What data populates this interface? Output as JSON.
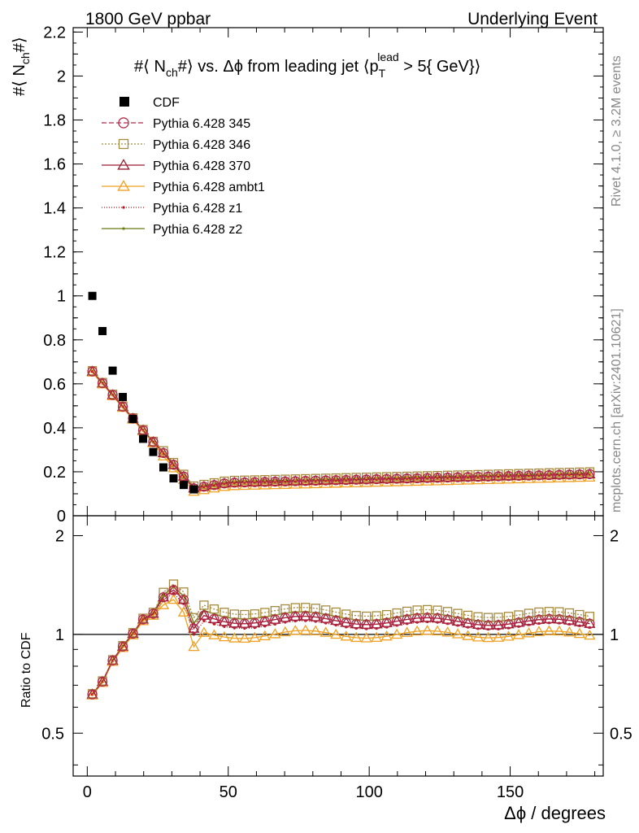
{
  "header": {
    "left": "1800 GeV ppbar",
    "right": "Underlying Event"
  },
  "side_labels": {
    "rivet": "Rivet 4.1.0, ≥ 3.2M events",
    "mcplots": "mcplots.cern.ch [arXiv:2401.10621]"
  },
  "chart_data": {
    "type": "scatter",
    "title_parts": {
      "a": "#⟨ N",
      "a_sub": "ch",
      "b": "#⟩ vs. Δϕ from leading jet  ⟨p",
      "b_sub": "T",
      "b_sup": "lead",
      "c": " > 5{ GeV}⟩"
    },
    "ylabel_parts": {
      "a": "#⟨ N",
      "sub": "ch",
      "b": "#⟩"
    },
    "xlabel": "Δϕ / degrees",
    "ratio_ylabel": "Ratio to CDF",
    "xlim": [
      -5,
      183
    ],
    "ylim": [
      0,
      2.22
    ],
    "ratio_ylim": [
      0.37,
      2.3
    ],
    "x_ticks": [
      "0",
      "50",
      "100",
      "150"
    ],
    "y_ticks": [
      "0",
      "0.2",
      "0.4",
      "0.6",
      "0.8",
      "1",
      "1.2",
      "1.4",
      "1.6",
      "1.8",
      "2",
      "2.2"
    ],
    "ratio_ticks": [
      "0.5",
      "1",
      "2"
    ],
    "legend": {
      "cdf": "CDF",
      "p345": "Pythia 6.428 345",
      "p346": "Pythia 6.428 346",
      "p370": "Pythia 6.428 370",
      "ambt1": "Pythia 6.428 ambt1",
      "z1": "Pythia 6.428 z1",
      "z2": "Pythia 6.428 z2"
    },
    "colors": {
      "cdf": "#000000",
      "p345": "#b22a4a",
      "p346": "#a68a3c",
      "p370": "#9b1b30",
      "ambt1": "#f0a020",
      "z1": "#c01010",
      "z2": "#6b7a10"
    },
    "cdf": {
      "x": [
        1.8,
        5.4,
        9.0,
        12.6,
        16.2,
        19.8,
        23.4,
        27.0,
        30.6,
        34.2,
        37.8
      ],
      "y": [
        1.0,
        0.84,
        0.66,
        0.54,
        0.44,
        0.35,
        0.29,
        0.22,
        0.17,
        0.14,
        0.12
      ]
    },
    "mc_model": {
      "x_start": 1.8,
      "x_step": 3.6,
      "count": 50,
      "min_at": 37.8,
      "y0": 0.655,
      "y_min": 0.12,
      "y_flat": 0.145,
      "y_end": 0.185,
      "offsets": {
        "p345": 0.005,
        "p346": 0.015,
        "p370": 0.005,
        "ambt1": -0.01,
        "z1": 0.0,
        "z2": 0.01
      }
    }
  }
}
